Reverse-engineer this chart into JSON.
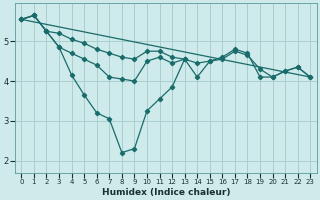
{
  "xlabel": "Humidex (Indice chaleur)",
  "bg_color": "#ceeaea",
  "grid_color": "#aacece",
  "line_color": "#1a6b6b",
  "xlim": [
    -0.5,
    23.5
  ],
  "ylim": [
    1.7,
    5.95
  ],
  "yticks": [
    2,
    3,
    4,
    5
  ],
  "xticks": [
    0,
    1,
    2,
    3,
    4,
    5,
    6,
    7,
    8,
    9,
    10,
    11,
    12,
    13,
    14,
    15,
    16,
    17,
    18,
    19,
    20,
    21,
    22,
    23
  ],
  "line1_x": [
    0,
    1,
    2,
    3,
    4,
    5,
    6,
    7,
    8,
    9,
    10,
    11,
    12,
    13,
    14,
    15,
    16,
    17,
    18,
    19,
    20,
    21,
    22,
    23
  ],
  "line1_y": [
    5.55,
    5.65,
    5.25,
    5.2,
    5.05,
    4.95,
    4.8,
    4.7,
    4.6,
    4.55,
    4.75,
    4.75,
    4.6,
    4.55,
    4.45,
    4.5,
    4.55,
    4.75,
    4.65,
    4.3,
    4.1,
    4.25,
    4.35,
    4.1
  ],
  "line2_x": [
    0,
    1,
    2,
    3,
    4,
    5,
    6,
    7,
    8,
    9,
    10,
    11,
    12,
    13,
    14,
    15,
    16,
    17,
    18,
    19,
    20,
    21,
    22,
    23
  ],
  "line2_y": [
    5.55,
    5.65,
    5.25,
    4.85,
    4.7,
    4.55,
    4.4,
    4.1,
    4.05,
    4.0,
    4.5,
    4.6,
    4.45,
    4.55,
    4.1,
    4.5,
    4.6,
    4.8,
    4.7,
    4.1,
    4.1,
    4.25,
    4.35,
    4.1
  ],
  "line3_x": [
    0,
    1,
    2,
    3,
    4,
    5,
    6,
    7,
    8,
    9,
    10,
    11,
    12,
    13
  ],
  "line3_y": [
    5.55,
    5.65,
    5.25,
    4.85,
    4.15,
    3.65,
    3.2,
    3.05,
    2.2,
    2.3,
    3.25,
    3.55,
    3.85,
    4.55
  ],
  "line4_x": [
    0,
    23
  ],
  "line4_y": [
    5.55,
    4.1
  ]
}
